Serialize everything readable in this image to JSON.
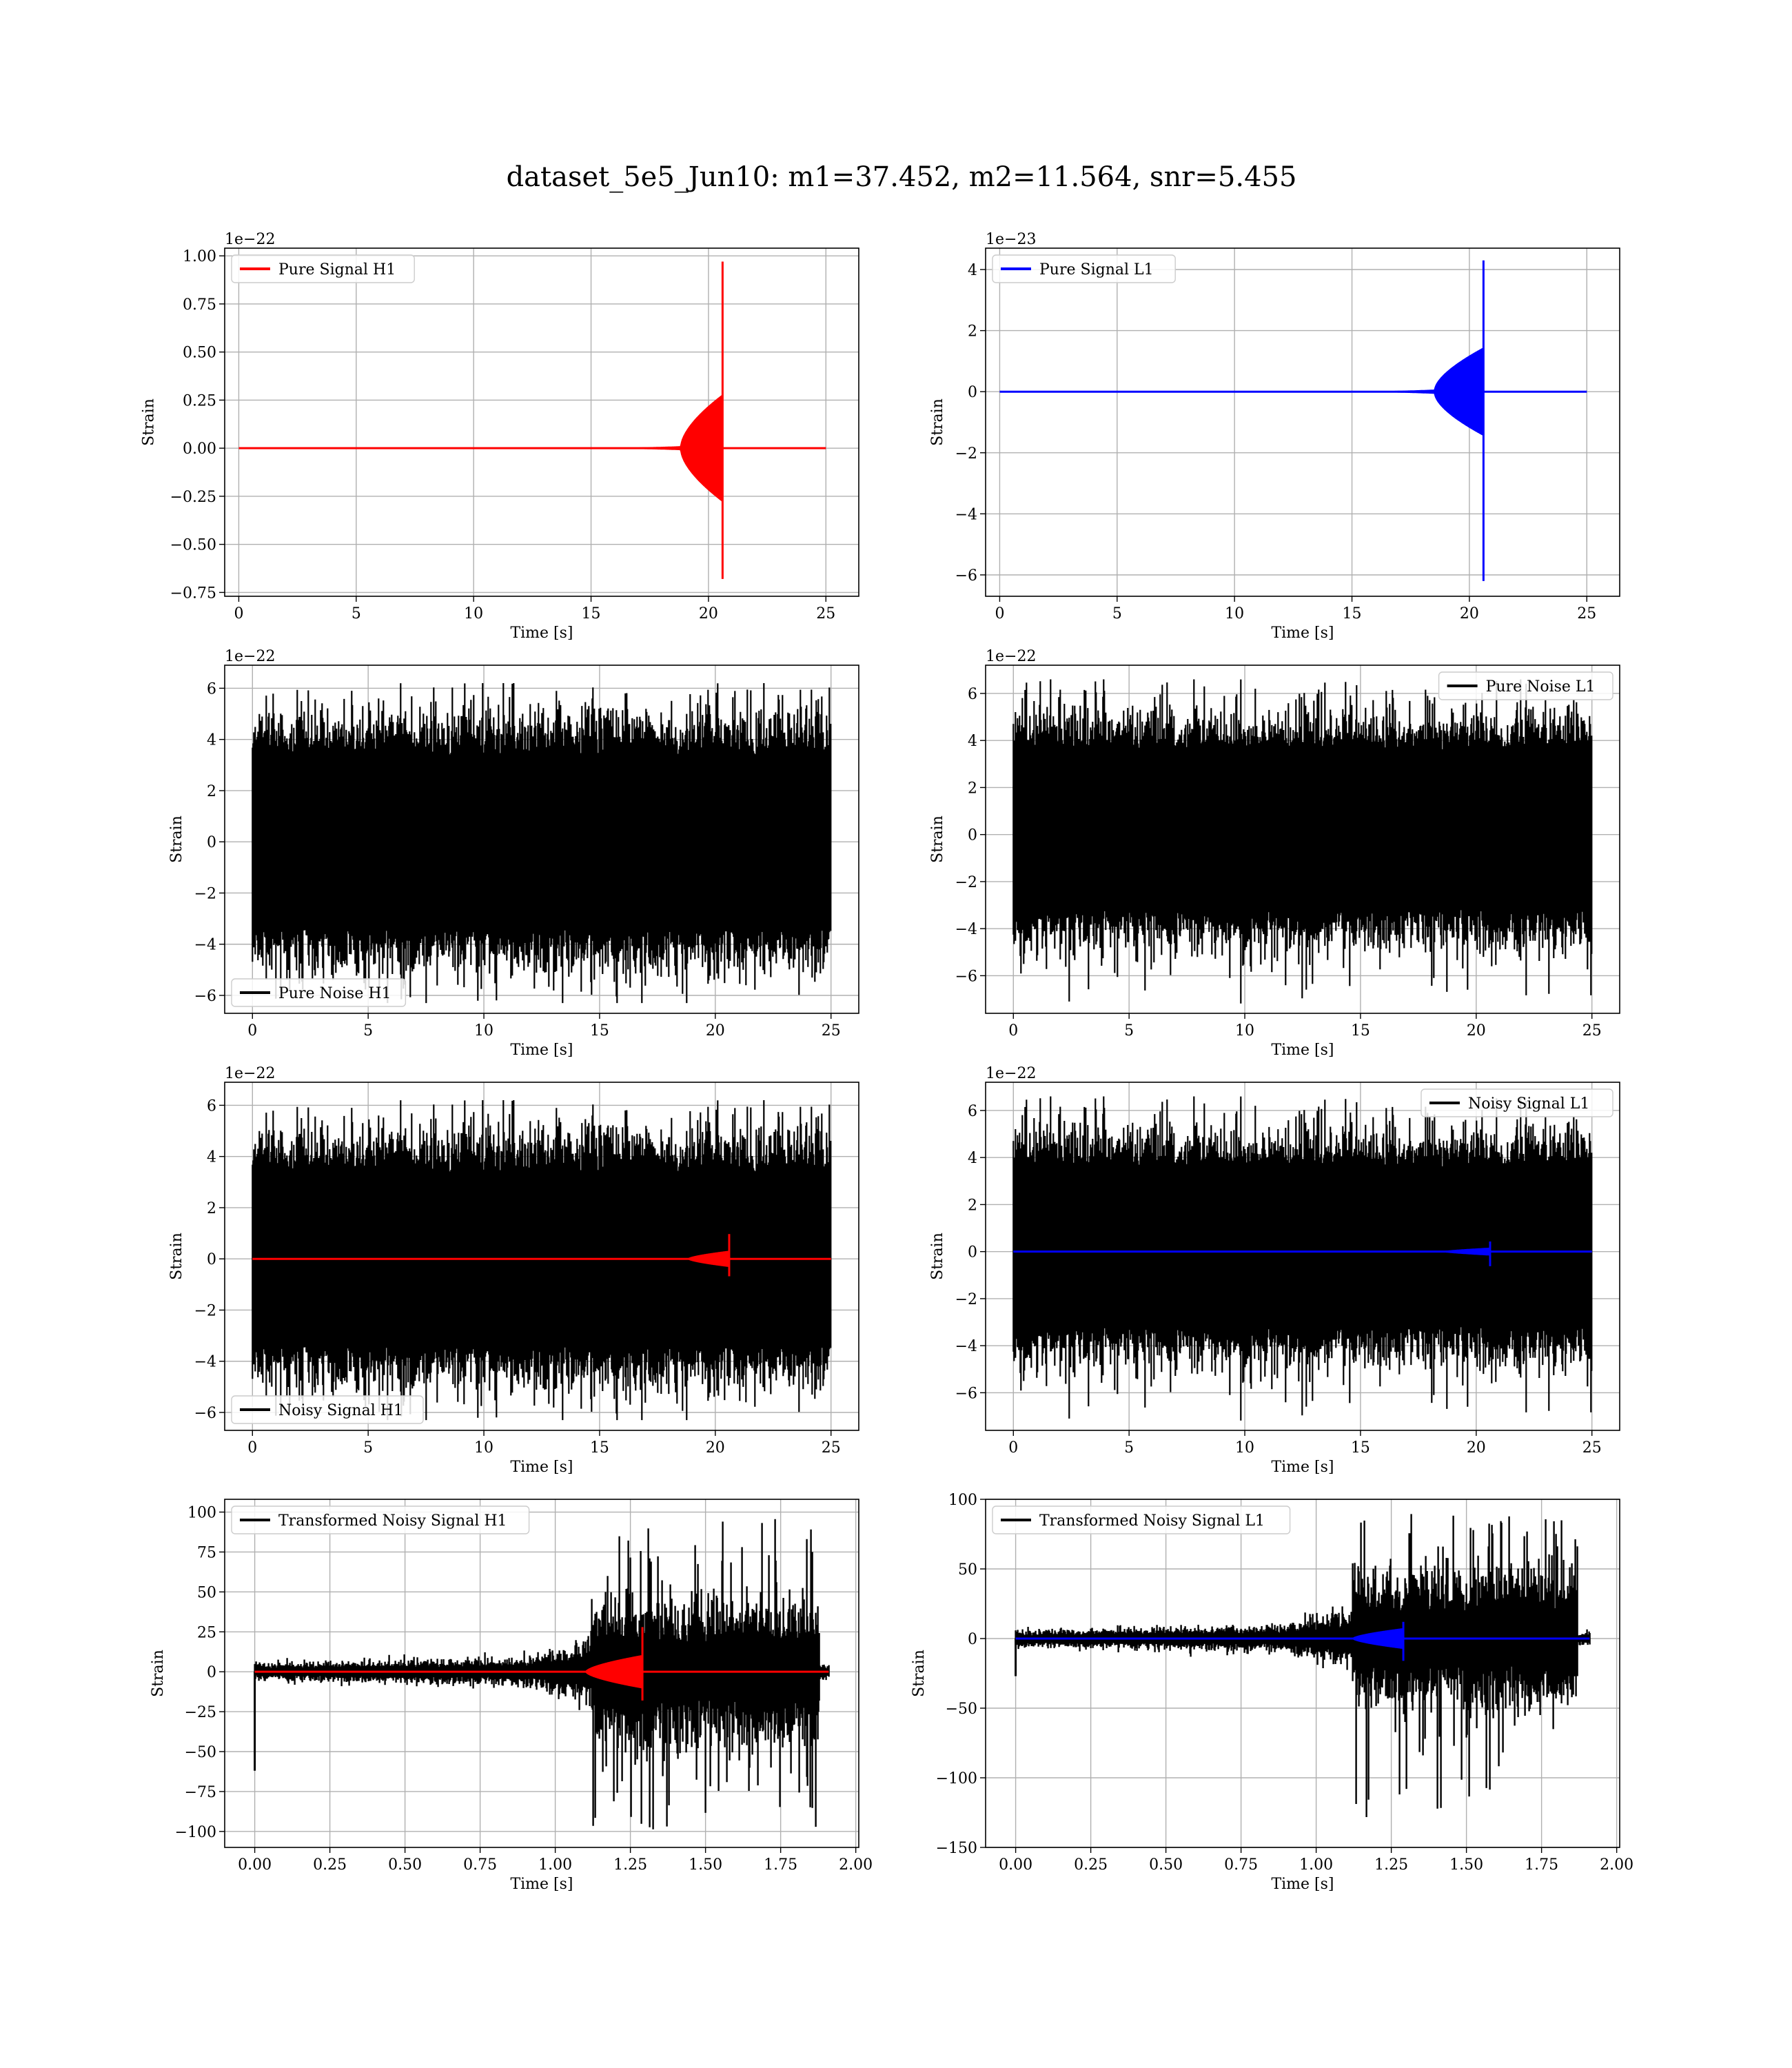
{
  "figure": {
    "title": "dataset_5e5_Jun10: m1=37.452, m2=11.564, snr=5.455"
  },
  "colors": {
    "h1": "#ff0000",
    "l1": "#0000ff",
    "noise": "#000000",
    "grid": "#b0b0b0"
  },
  "chart_data": [
    {
      "id": "pure-signal-h1",
      "type": "line",
      "xlabel": "Time [s]",
      "ylabel": "Strain",
      "offset_text": "1e−22",
      "xlim": [
        -0.6,
        26.4
      ],
      "ylim": [
        -0.77,
        1.04
      ],
      "xticks": [
        0,
        5,
        10,
        15,
        20,
        25
      ],
      "xtick_labels": [
        "0",
        "5",
        "10",
        "15",
        "20",
        "25"
      ],
      "yticks": [
        1.0,
        0.75,
        0.5,
        0.25,
        0.0,
        -0.25,
        -0.5,
        -0.75
      ],
      "ytick_labels": [
        "1.00",
        "0.75",
        "0.50",
        "0.25",
        "0.00",
        "−0.25",
        "−0.50",
        "−0.75"
      ],
      "grid": true,
      "legend_position": "upper-left",
      "series": [
        {
          "name": "Pure Signal H1",
          "role": "chirp",
          "color": "#ff0000",
          "t_end": 25,
          "t_merge": 20.6,
          "t_rise": 13.5,
          "base_amp": 0.02,
          "hump_amp": 0.26,
          "hump_start": 18.8,
          "peak_pos": 0.97,
          "peak_neg": -0.68
        }
      ]
    },
    {
      "id": "pure-signal-l1",
      "type": "line",
      "xlabel": "Time [s]",
      "ylabel": "Strain",
      "offset_text": "1e−23",
      "xlim": [
        -0.6,
        26.4
      ],
      "ylim": [
        -6.7,
        4.7
      ],
      "xticks": [
        0,
        5,
        10,
        15,
        20,
        25
      ],
      "xtick_labels": [
        "0",
        "5",
        "10",
        "15",
        "20",
        "25"
      ],
      "yticks": [
        4,
        2,
        0,
        -2,
        -4,
        -6
      ],
      "ytick_labels": [
        "4",
        "2",
        "0",
        "−2",
        "−4",
        "−6"
      ],
      "grid": true,
      "legend_position": "upper-left",
      "series": [
        {
          "name": "Pure Signal L1",
          "role": "chirp",
          "color": "#0000ff",
          "t_end": 25,
          "t_merge": 20.6,
          "t_rise": 13.5,
          "base_amp": 0.15,
          "hump_amp": 1.3,
          "hump_start": 18.5,
          "peak_pos": 4.3,
          "peak_neg": -6.2
        }
      ]
    },
    {
      "id": "pure-noise-h1",
      "type": "line",
      "xlabel": "Time [s]",
      "ylabel": "Strain",
      "offset_text": "1e−22",
      "xlim": [
        -1.2,
        26.2
      ],
      "ylim": [
        -6.7,
        6.9
      ],
      "xticks": [
        0,
        5,
        10,
        15,
        20,
        25
      ],
      "xtick_labels": [
        "0",
        "5",
        "10",
        "15",
        "20",
        "25"
      ],
      "yticks": [
        6,
        4,
        2,
        0,
        -2,
        -4,
        -6
      ],
      "ytick_labels": [
        "6",
        "4",
        "2",
        "0",
        "−2",
        "−4",
        "−6"
      ],
      "grid": true,
      "legend_position": "lower-left",
      "series": [
        {
          "name": "Pure Noise H1",
          "role": "noise",
          "color": "#000000",
          "t_end": 25,
          "band": [
            -3.2,
            3.2
          ],
          "spike_max": 6.2,
          "spike_min": -6.3,
          "seed": 11
        }
      ]
    },
    {
      "id": "pure-noise-l1",
      "type": "line",
      "xlabel": "Time [s]",
      "ylabel": "Strain",
      "offset_text": "1e−22",
      "xlim": [
        -1.2,
        26.2
      ],
      "ylim": [
        -7.6,
        7.2
      ],
      "xticks": [
        0,
        5,
        10,
        15,
        20,
        25
      ],
      "xtick_labels": [
        "0",
        "5",
        "10",
        "15",
        "20",
        "25"
      ],
      "yticks": [
        6,
        4,
        2,
        0,
        -2,
        -4,
        -6
      ],
      "ytick_labels": [
        "6",
        "4",
        "2",
        "0",
        "−2",
        "−4",
        "−6"
      ],
      "grid": true,
      "legend_position": "upper-right",
      "series": [
        {
          "name": "Pure Noise L1",
          "role": "noise",
          "color": "#000000",
          "t_end": 25,
          "band": [
            -3.0,
            3.4
          ],
          "spike_max": 6.6,
          "spike_min": -7.2,
          "seed": 23
        }
      ]
    },
    {
      "id": "noisy-signal-h1",
      "type": "line",
      "xlabel": "Time [s]",
      "ylabel": "Strain",
      "offset_text": "1e−22",
      "xlim": [
        -1.2,
        26.2
      ],
      "ylim": [
        -6.7,
        6.9
      ],
      "xticks": [
        0,
        5,
        10,
        15,
        20,
        25
      ],
      "xtick_labels": [
        "0",
        "5",
        "10",
        "15",
        "20",
        "25"
      ],
      "yticks": [
        6,
        4,
        2,
        0,
        -2,
        -4,
        -6
      ],
      "ytick_labels": [
        "6",
        "4",
        "2",
        "0",
        "−2",
        "−4",
        "−6"
      ],
      "grid": true,
      "legend_position": "lower-left",
      "series": [
        {
          "name": "Noisy Signal H1",
          "role": "noise",
          "color": "#000000",
          "t_end": 25,
          "band": [
            -3.2,
            3.2
          ],
          "spike_max": 6.2,
          "spike_min": -6.3,
          "seed": 11
        },
        {
          "role": "chirp",
          "color": "#ff0000",
          "t_end": 25,
          "t_merge": 20.6,
          "t_rise": 17.0,
          "base_amp": 0.02,
          "hump_amp": 0.3,
          "hump_start": 18.8,
          "peak_pos": 0.97,
          "peak_neg": -0.68
        }
      ]
    },
    {
      "id": "noisy-signal-l1",
      "type": "line",
      "xlabel": "Time [s]",
      "ylabel": "Strain",
      "offset_text": "1e−22",
      "xlim": [
        -1.2,
        26.2
      ],
      "ylim": [
        -7.6,
        7.2
      ],
      "xticks": [
        0,
        5,
        10,
        15,
        20,
        25
      ],
      "xtick_labels": [
        "0",
        "5",
        "10",
        "15",
        "20",
        "25"
      ],
      "yticks": [
        6,
        4,
        2,
        0,
        -2,
        -4,
        -6
      ],
      "ytick_labels": [
        "6",
        "4",
        "2",
        "0",
        "−2",
        "−4",
        "−6"
      ],
      "grid": true,
      "legend_position": "upper-right",
      "series": [
        {
          "name": "Noisy Signal L1",
          "role": "noise",
          "color": "#000000",
          "t_end": 25,
          "band": [
            -3.0,
            3.4
          ],
          "spike_max": 6.6,
          "spike_min": -7.2,
          "seed": 23
        },
        {
          "role": "chirp",
          "color": "#0000ff",
          "t_end": 25,
          "t_merge": 20.6,
          "t_rise": 17.0,
          "base_amp": 0.02,
          "hump_amp": 0.15,
          "hump_start": 18.5,
          "peak_pos": 0.43,
          "peak_neg": -0.62
        }
      ]
    },
    {
      "id": "transformed-noisy-signal-h1",
      "type": "line",
      "xlabel": "Time [s]",
      "ylabel": "Strain",
      "offset_text": "",
      "xlim": [
        -0.1,
        2.01
      ],
      "ylim": [
        -110,
        108
      ],
      "xticks": [
        0,
        0.25,
        0.5,
        0.75,
        1.0,
        1.25,
        1.5,
        1.75,
        2.0
      ],
      "xtick_labels": [
        "0.00",
        "0.25",
        "0.50",
        "0.75",
        "1.00",
        "1.25",
        "1.50",
        "1.75",
        "2.00"
      ],
      "yticks": [
        100,
        75,
        50,
        25,
        0,
        -25,
        -50,
        -75,
        -100
      ],
      "ytick_labels": [
        "100",
        "75",
        "50",
        "25",
        "0",
        "−25",
        "−50",
        "−75",
        "−100"
      ],
      "grid": true,
      "legend_position": "upper-left",
      "series": [
        {
          "name": "Transformed Noisy Signal H1",
          "role": "whitened",
          "color": "#000000",
          "t_end": 1.91,
          "t_burst": 1.12,
          "t_burst_end": 1.88,
          "pre_amp": 8,
          "burst_amp": 40,
          "burst_max": 98,
          "burst_min": -100,
          "start_dip": -62,
          "seed": 7
        },
        {
          "role": "chirp",
          "color": "#ff0000",
          "t_end": 1.91,
          "t_merge": 1.29,
          "t_rise": 0.85,
          "base_amp": 0.5,
          "hump_amp": 10,
          "hump_start": 1.1,
          "peak_pos": 28,
          "peak_neg": -18
        }
      ]
    },
    {
      "id": "transformed-noisy-signal-l1",
      "type": "line",
      "xlabel": "Time [s]",
      "ylabel": "Strain",
      "offset_text": "",
      "xlim": [
        -0.1,
        2.01
      ],
      "ylim": [
        -150,
        100
      ],
      "xticks": [
        0,
        0.25,
        0.5,
        0.75,
        1.0,
        1.25,
        1.5,
        1.75,
        2.0
      ],
      "xtick_labels": [
        "0.00",
        "0.25",
        "0.50",
        "0.75",
        "1.00",
        "1.25",
        "1.50",
        "1.75",
        "2.00"
      ],
      "yticks": [
        100,
        50,
        0,
        -50,
        -100,
        -150
      ],
      "ytick_labels": [
        "100",
        "50",
        "0",
        "−50",
        "−100",
        "−150"
      ],
      "grid": true,
      "legend_position": "upper-left",
      "series": [
        {
          "name": "Transformed Noisy Signal L1",
          "role": "whitened",
          "color": "#000000",
          "t_end": 1.91,
          "t_burst": 1.12,
          "t_burst_end": 1.87,
          "pre_amp": 9,
          "burst_amp": 42,
          "burst_max": 90,
          "burst_min": -140,
          "start_dip": -27,
          "seed": 19
        },
        {
          "role": "chirp",
          "color": "#0000ff",
          "t_end": 1.91,
          "t_merge": 1.29,
          "t_rise": 0.9,
          "base_amp": 0.5,
          "hump_amp": 7,
          "hump_start": 1.12,
          "peak_pos": 12,
          "peak_neg": -16
        }
      ]
    }
  ]
}
